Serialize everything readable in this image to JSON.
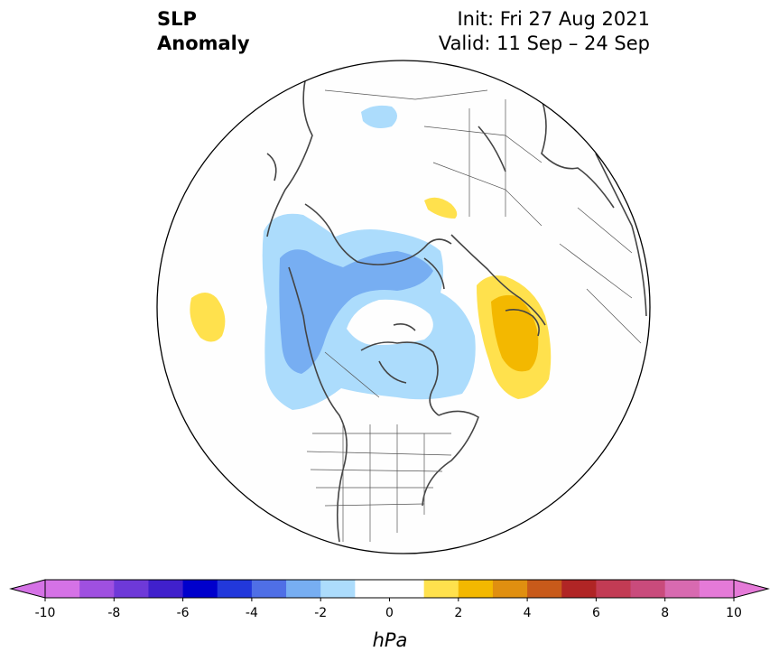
{
  "title": {
    "left_line1": "SLP",
    "left_line2": "Anomaly",
    "right_line1": "Init: Fri 27 Aug 2021",
    "right_line2": "Valid: 11 Sep – 24 Sep"
  },
  "map": {
    "projection": "north polar stereographic",
    "region": "Northern Hemisphere",
    "anomaly_features": [
      {
        "sign": "negative",
        "peak_hPa": -3,
        "region": "Alaska / Beaufort Sea"
      },
      {
        "sign": "negative",
        "peak_hPa": -1,
        "region": "Northern Russia"
      },
      {
        "sign": "positive",
        "peak_hPa": 1,
        "region": "North Pacific"
      },
      {
        "sign": "positive",
        "peak_hPa": 1,
        "region": "Western Russia"
      },
      {
        "sign": "positive",
        "peak_hPa": 3,
        "region": "Norwegian Sea / UK"
      }
    ]
  },
  "colorbar": {
    "unit_label": "hPa",
    "tick_labels": [
      "-10",
      "-8",
      "-6",
      "-4",
      "-2",
      "0",
      "2",
      "4",
      "6",
      "8",
      "10"
    ],
    "extend": "both",
    "colors": [
      "#d572e6",
      "#9f50e0",
      "#6e39d8",
      "#4020cc",
      "#0000cc",
      "#2238db",
      "#4f6fe6",
      "#77aef2",
      "#acdcfc",
      "#ffffff",
      "#ffffff",
      "#ffe14d",
      "#f3b800",
      "#e08f10",
      "#c85a1a",
      "#b02525",
      "#c23b54",
      "#c94b7c",
      "#d86ab0",
      "#e57ad8"
    ],
    "over_color": "#e57ad8",
    "under_color": "#d572e6"
  }
}
